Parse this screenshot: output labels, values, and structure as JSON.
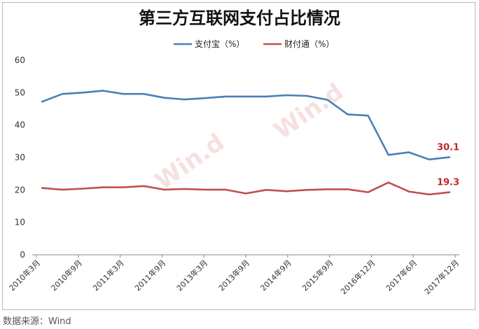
{
  "source": "数据来源：Wind",
  "watermark": "Win.d",
  "chart_data": {
    "type": "line",
    "title": "第三方互联网支付占比情况",
    "xlabel": "",
    "ylabel": "",
    "ylim": [
      0,
      60
    ],
    "yticks": [
      0,
      10,
      20,
      30,
      40,
      50,
      60
    ],
    "grid": false,
    "legend": "top",
    "x": [
      "2010年3月",
      "2010年6月",
      "2010年9月",
      "2010年12月",
      "2011年3月",
      "2011年6月",
      "2011年9月",
      "2011年12月",
      "2013年3月",
      "2013年6月",
      "2013年9月",
      "2013年12月",
      "2014年9月",
      "2014年12月",
      "2015年9月",
      "2015年12月",
      "2016年12月",
      "2017年3月",
      "2017年6月",
      "2017年9月",
      "2017年12月"
    ],
    "xtick_labels": [
      "2010年3月",
      "2010年9月",
      "2011年3月",
      "2011年9月",
      "2013年3月",
      "2013年9月",
      "2014年9月",
      "2015年9月",
      "2016年12月",
      "2017年6月",
      "2017年12月"
    ],
    "series": [
      {
        "name": "支付宝（%）",
        "color": "#4a7fb5",
        "values": [
          47.2,
          49.6,
          50.0,
          50.6,
          49.6,
          49.6,
          48.4,
          47.9,
          48.3,
          48.8,
          48.8,
          48.8,
          49.2,
          49.0,
          47.8,
          43.3,
          42.9,
          30.8,
          31.6,
          29.4,
          30.1
        ],
        "end_label": "30.1"
      },
      {
        "name": "财付通（%）",
        "color": "#c0504d",
        "values": [
          20.6,
          20.1,
          20.4,
          20.8,
          20.8,
          21.2,
          20.1,
          20.3,
          20.1,
          20.1,
          18.9,
          20.0,
          19.6,
          20.0,
          20.2,
          20.2,
          19.3,
          22.3,
          19.5,
          18.6,
          19.3
        ],
        "end_label": "19.3"
      }
    ]
  }
}
